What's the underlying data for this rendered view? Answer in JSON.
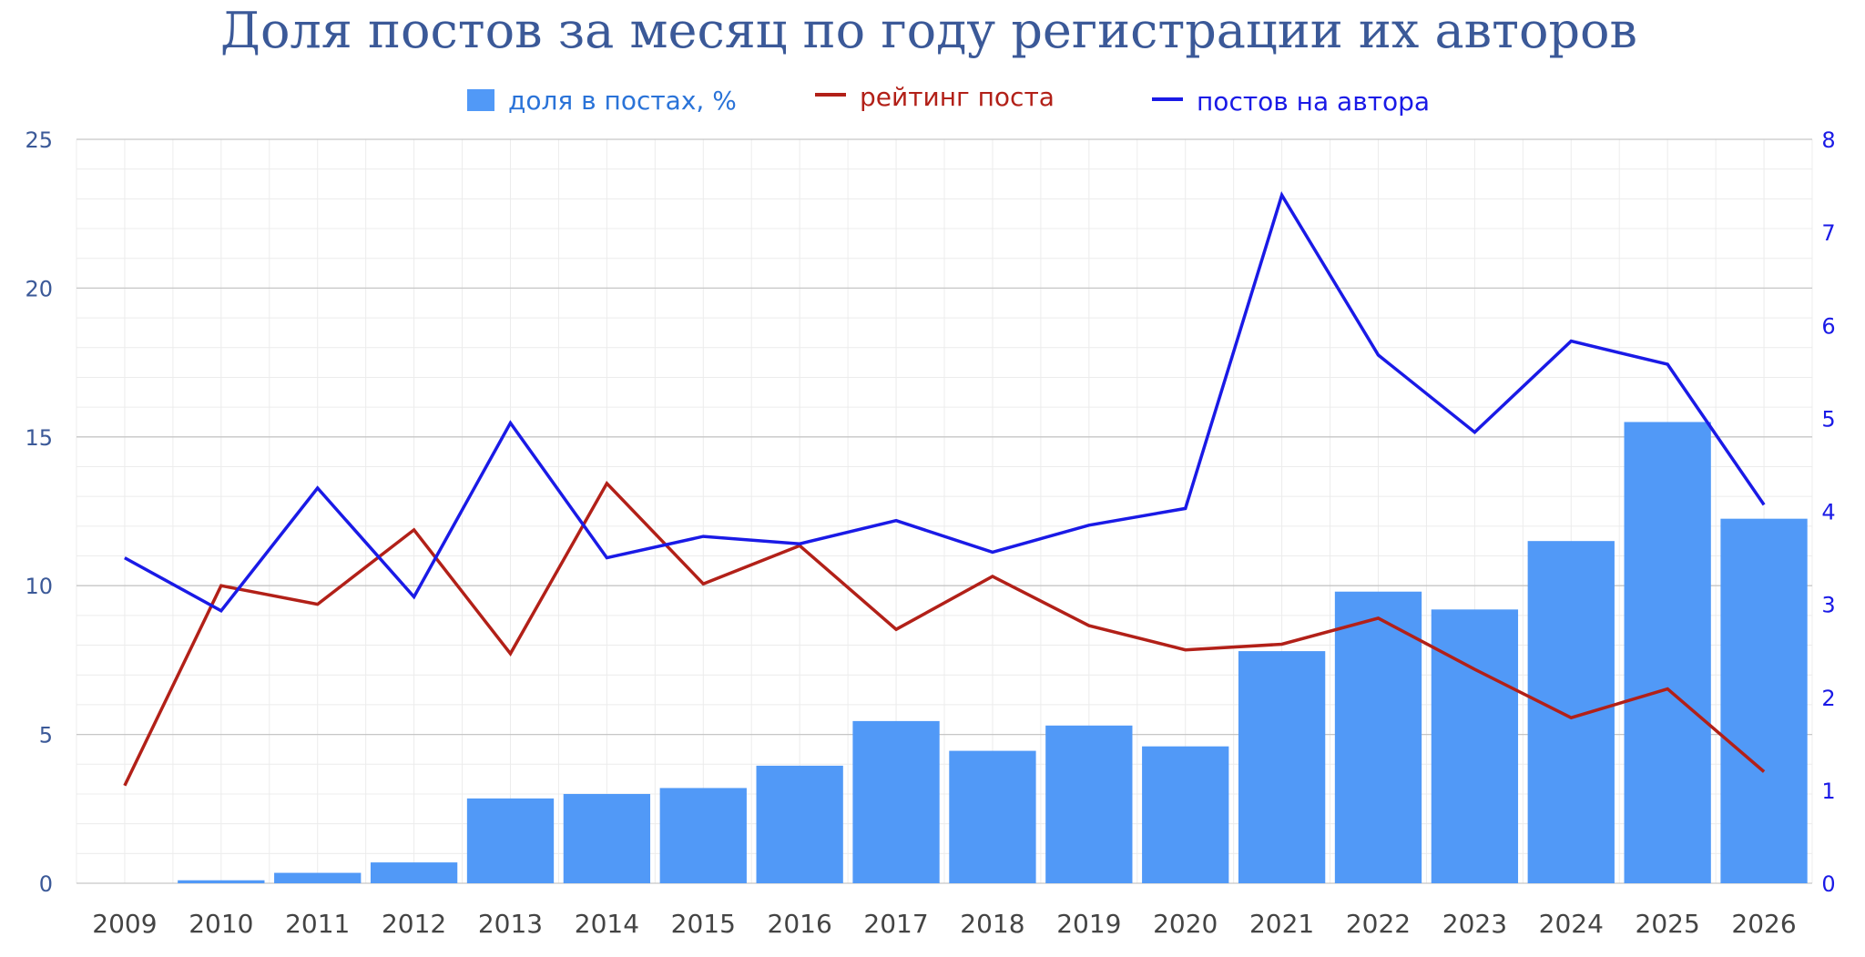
{
  "chart_data": {
    "type": "bar",
    "title": "Доля постов за месяц по году регистрации их авторов",
    "categories": [
      "2009",
      "2010",
      "2011",
      "2012",
      "2013",
      "2014",
      "2015",
      "2016",
      "2017",
      "2018",
      "2019",
      "2020",
      "2021",
      "2022",
      "2023",
      "2024",
      "2025",
      "2026"
    ],
    "series": [
      {
        "name": "доля в постах, %",
        "type": "bar",
        "axis": "left",
        "color": "#5199f7",
        "values": [
          0.0,
          0.1,
          0.35,
          0.7,
          2.85,
          3.0,
          3.2,
          3.95,
          5.45,
          4.45,
          5.3,
          4.6,
          7.8,
          9.8,
          9.2,
          11.5,
          15.5,
          12.25
        ]
      },
      {
        "name": "рейтинг поста",
        "type": "line",
        "axis": "right",
        "color": "#b22018",
        "values": [
          1.05,
          3.2,
          3.0,
          3.8,
          2.47,
          4.3,
          3.22,
          3.63,
          2.73,
          3.3,
          2.77,
          2.51,
          2.57,
          2.85,
          2.3,
          1.78,
          2.09,
          1.2
        ]
      },
      {
        "name": "постов на автора",
        "type": "line",
        "axis": "right",
        "color": "#1a1ae6",
        "values": [
          3.5,
          2.93,
          4.25,
          3.08,
          4.95,
          3.5,
          3.73,
          3.65,
          3.9,
          3.56,
          3.85,
          4.03,
          7.4,
          5.68,
          4.85,
          5.83,
          5.58,
          4.07
        ]
      }
    ],
    "y_left": {
      "min": 0,
      "max": 25,
      "ticks": [
        0,
        5,
        10,
        15,
        20,
        25
      ],
      "tick_labels": [
        "0",
        "5",
        "10",
        "15",
        "20",
        "25"
      ]
    },
    "y_right": {
      "min": 0,
      "max": 8,
      "ticks": [
        0,
        1,
        2,
        3,
        4,
        5,
        6,
        7,
        8
      ],
      "tick_labels": [
        "0",
        "1",
        "2",
        "3",
        "4",
        "5",
        "6",
        "7",
        "8"
      ]
    },
    "xlabel": "",
    "ylabel": "",
    "grid": true,
    "legend_position": "top-center"
  },
  "colors": {
    "title": "#3b5998",
    "bar_legend_text": "#2a73d8",
    "left_axis_text": "#3b5998",
    "right_axis_text": "#1a1ae6",
    "x_axis_text": "#444444",
    "grid_major": "#c6c6c6",
    "grid_minor": "#ececec"
  }
}
